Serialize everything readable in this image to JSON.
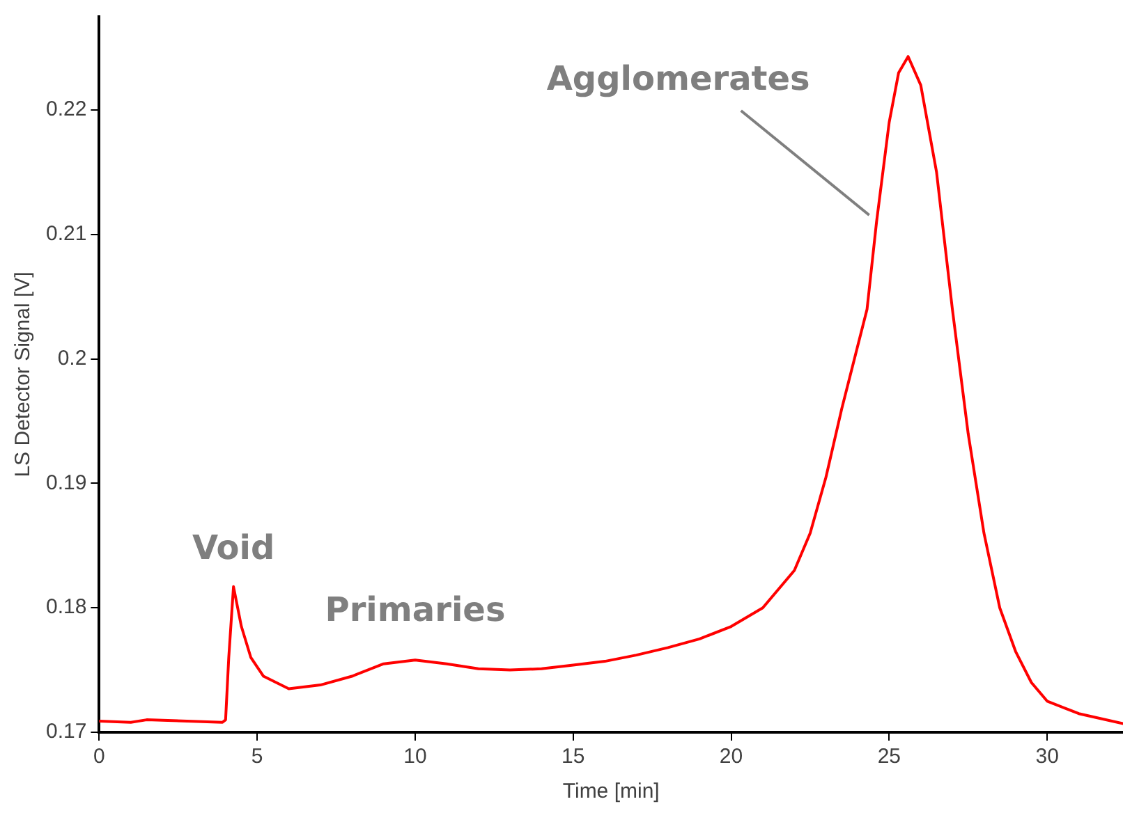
{
  "chart_data": {
    "type": "line",
    "xlabel": "Time [min]",
    "ylabel": "LS Detector Signal [V]",
    "xlim": [
      0,
      32.4
    ],
    "xticks": [
      0,
      5,
      10,
      15,
      20,
      25,
      30
    ],
    "ylim": [
      0.17,
      0.2275
    ],
    "yticks": [
      0.17,
      0.18,
      0.19,
      0.2,
      0.21,
      0.22
    ],
    "grid": false,
    "legend": false,
    "marker": "none",
    "line_style": "solid",
    "annotations": [
      {
        "text": "Void",
        "x": 4.25,
        "y": 0.1817
      },
      {
        "text": "Primaries",
        "x": 10,
        "y": 0.1758
      },
      {
        "text": "Agglomerates",
        "x": 24.5,
        "y": 0.211
      }
    ],
    "series": [
      {
        "color": "#ff0000",
        "x": [
          0,
          1,
          1.5,
          3.9,
          4.0,
          4.1,
          4.25,
          4.5,
          4.8,
          5.2,
          6,
          7,
          8,
          9,
          10,
          11,
          12,
          13,
          14,
          15,
          16,
          17,
          18,
          19,
          20,
          21,
          22,
          22.5,
          23,
          23.5,
          24,
          24.3,
          24.6,
          25,
          25.3,
          25.6,
          26,
          26.5,
          27,
          27.5,
          28,
          28.5,
          29,
          29.5,
          30,
          31,
          32.4
        ],
        "values": [
          0.1709,
          0.1708,
          0.171,
          0.1708,
          0.171,
          0.176,
          0.1817,
          0.1785,
          0.176,
          0.1745,
          0.1735,
          0.1738,
          0.1745,
          0.1755,
          0.1758,
          0.1755,
          0.1751,
          0.175,
          0.1751,
          0.1754,
          0.1757,
          0.1762,
          0.1768,
          0.1775,
          0.1785,
          0.18,
          0.183,
          0.186,
          0.1905,
          0.196,
          0.201,
          0.204,
          0.211,
          0.219,
          0.223,
          0.2243,
          0.222,
          0.215,
          0.204,
          0.194,
          0.186,
          0.18,
          0.1765,
          0.174,
          0.1725,
          0.1715,
          0.1707
        ]
      }
    ]
  }
}
